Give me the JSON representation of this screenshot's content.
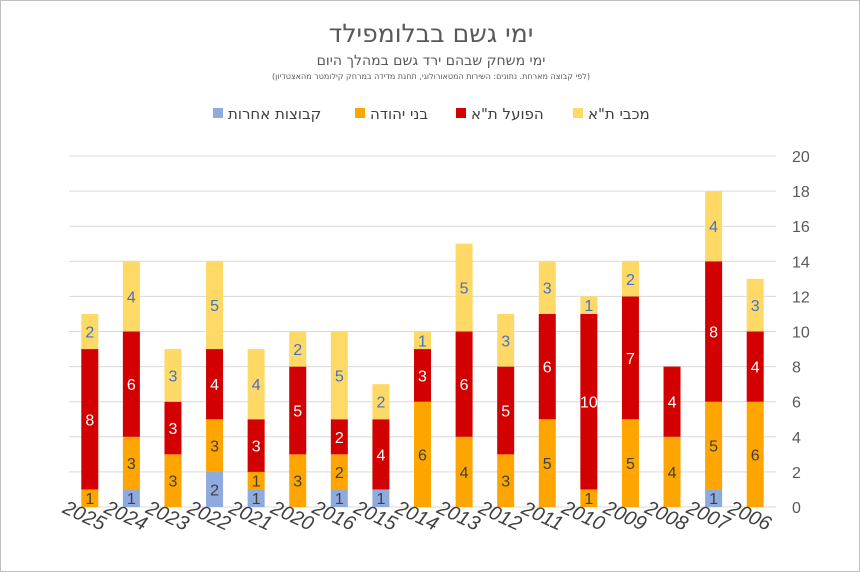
{
  "chart_data": {
    "type": "bar",
    "stacked": true,
    "title": "ימי גשם בבלומפילד",
    "subtitle": "ימי משחק שבהם ירד גשם במהלך היום",
    "note": "(לפי קבוצה מארחת. נתונים: השירות המטאורולוגי, תחנת מדידה במרחק קילומטר מהאצטדיון)",
    "categories": [
      "2025",
      "2024",
      "2023",
      "2022",
      "2021",
      "2020",
      "2016",
      "2015",
      "2014",
      "2013",
      "2012",
      "2011",
      "2010",
      "2009",
      "2008",
      "2007",
      "2006"
    ],
    "series": [
      {
        "name": "קבוצות אחרות",
        "color": "#8faadc",
        "label_color": "#404040",
        "values": [
          0,
          1,
          0,
          2,
          1,
          0,
          1,
          1,
          0,
          0,
          0,
          0,
          0,
          0,
          0,
          1,
          0
        ]
      },
      {
        "name": "בני יהודה",
        "color": "#ffa500",
        "label_color": "#404040",
        "values": [
          1,
          3,
          3,
          3,
          1,
          3,
          2,
          0,
          6,
          4,
          3,
          5,
          1,
          5,
          4,
          5,
          6
        ]
      },
      {
        "name": "הפועל ת\"א",
        "color": "#d20000",
        "label_color": "#ffffff",
        "values": [
          8,
          6,
          3,
          4,
          3,
          5,
          2,
          4,
          3,
          6,
          5,
          6,
          10,
          7,
          4,
          8,
          4
        ]
      },
      {
        "name": "מכבי ת\"א",
        "color": "#ffd966",
        "label_color": "#4472c4",
        "values": [
          2,
          4,
          3,
          5,
          4,
          2,
          5,
          2,
          1,
          5,
          3,
          3,
          1,
          2,
          0,
          4,
          3
        ]
      }
    ],
    "legend_order": [
      "מכבי ת\"א",
      "הפועל ת\"א",
      "בני יהודה",
      "קבוצות אחרות"
    ],
    "ylim": [
      0,
      20
    ],
    "yticks": [
      "0",
      "2",
      "4",
      "6",
      "8",
      "10",
      "12",
      "14",
      "16",
      "18",
      "20"
    ],
    "y_axis_side": "right",
    "legend_position": "top",
    "grid": true
  }
}
